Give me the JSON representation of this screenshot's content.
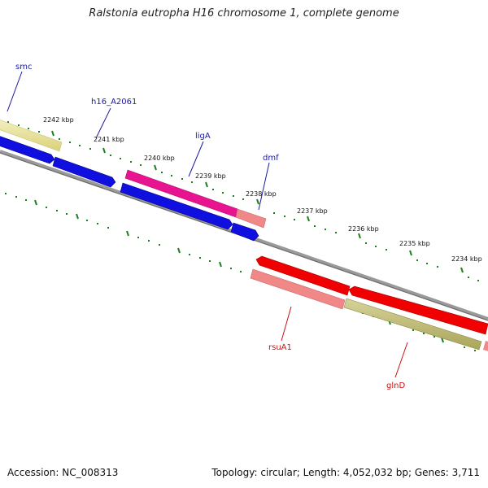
{
  "title": "Ralstonia eutropha H16 chromosome 1, complete genome",
  "footer": {
    "accession": "Accession: NC_008313",
    "summary": "Topology: circular; Length: 4,052,032 bp; Genes: 3,711"
  },
  "colors": {
    "backbone": "#8a8a8a",
    "tick": "#1f7f1f",
    "forward_label": "#1a1aa6",
    "reverse_label": "#cc1111",
    "blue_gene": "#0f0fe0",
    "magenta_gene": "#e8138e",
    "salmon_gene": "#f08888",
    "yellow_gene": "#ece7a0",
    "olive_gene": "#c3bf7a",
    "red_gene": "#f00000"
  },
  "scale_labels": [
    "2242 kbp",
    "2241 kbp",
    "2240 kbp",
    "2239 kbp",
    "2238 kbp",
    "2237 kbp",
    "2236 kbp",
    "2235 kbp",
    "2234 kbp"
  ],
  "gene_labels": [
    {
      "name": "smc",
      "strand": "forward"
    },
    {
      "name": "h16_A2061",
      "strand": "forward"
    },
    {
      "name": "ligA",
      "strand": "forward"
    },
    {
      "name": "dmf",
      "strand": "forward"
    },
    {
      "name": "rsuA1",
      "strand": "reverse"
    },
    {
      "name": "glnD",
      "strand": "reverse"
    }
  ]
}
